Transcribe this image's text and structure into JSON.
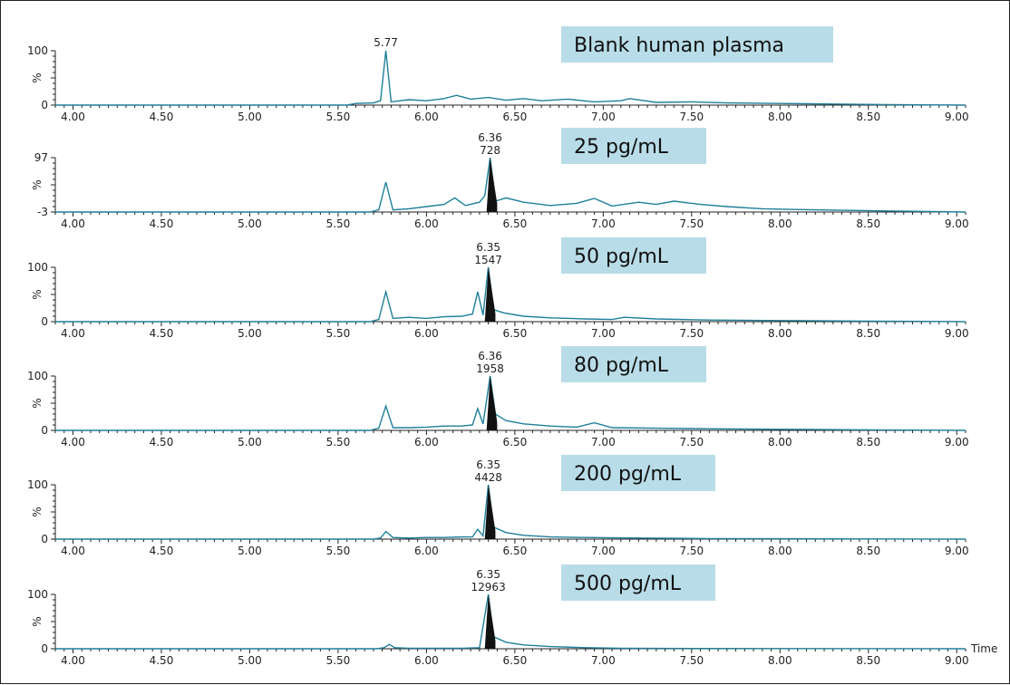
{
  "colors": {
    "trace": "#1f7f9a",
    "peak_fill": "#111111",
    "label_box": "#b9dde8",
    "axis": "#222222"
  },
  "chart_data": {
    "type": "line",
    "x_axis_label": "Time",
    "xlim": [
      3.9,
      9.05
    ],
    "x_ticks": [
      "4.00",
      "4.50",
      "5.00",
      "5.50",
      "6.00",
      "6.50",
      "7.00",
      "7.50",
      "8.00",
      "8.50",
      "9.00"
    ],
    "y_unit_label": "%",
    "panels": [
      {
        "sample_label": "Blank human plasma",
        "y_top_label": "100",
        "y_bottom_label": "0",
        "peak": {
          "rt": "5.77",
          "area": ""
        },
        "points": [
          [
            3.9,
            0
          ],
          [
            5.55,
            0
          ],
          [
            5.6,
            3
          ],
          [
            5.7,
            4
          ],
          [
            5.74,
            8
          ],
          [
            5.77,
            100
          ],
          [
            5.8,
            6
          ],
          [
            5.9,
            10
          ],
          [
            6.0,
            8
          ],
          [
            6.1,
            12
          ],
          [
            6.17,
            18
          ],
          [
            6.25,
            11
          ],
          [
            6.35,
            14
          ],
          [
            6.45,
            9
          ],
          [
            6.55,
            12
          ],
          [
            6.65,
            8
          ],
          [
            6.8,
            11
          ],
          [
            6.95,
            6
          ],
          [
            7.1,
            8
          ],
          [
            7.15,
            12
          ],
          [
            7.3,
            5
          ],
          [
            7.5,
            6
          ],
          [
            7.7,
            4
          ],
          [
            8.0,
            3
          ],
          [
            8.3,
            2
          ],
          [
            8.6,
            1
          ],
          [
            9.05,
            0
          ]
        ]
      },
      {
        "sample_label": "25 pg/mL",
        "y_top_label": "97",
        "y_bottom_label": "-3",
        "peak": {
          "rt": "6.36",
          "area": "728"
        },
        "points": [
          [
            3.9,
            0
          ],
          [
            5.68,
            0
          ],
          [
            5.73,
            4
          ],
          [
            5.77,
            55
          ],
          [
            5.81,
            4
          ],
          [
            5.9,
            6
          ],
          [
            6.0,
            10
          ],
          [
            6.1,
            14
          ],
          [
            6.16,
            26
          ],
          [
            6.22,
            12
          ],
          [
            6.3,
            18
          ],
          [
            6.33,
            30
          ],
          [
            6.36,
            100
          ],
          [
            6.39,
            20
          ],
          [
            6.45,
            26
          ],
          [
            6.55,
            18
          ],
          [
            6.7,
            12
          ],
          [
            6.85,
            16
          ],
          [
            6.95,
            25
          ],
          [
            7.05,
            11
          ],
          [
            7.2,
            18
          ],
          [
            7.3,
            14
          ],
          [
            7.4,
            20
          ],
          [
            7.55,
            14
          ],
          [
            7.7,
            10
          ],
          [
            7.9,
            6
          ],
          [
            8.2,
            4
          ],
          [
            8.6,
            2
          ],
          [
            9.05,
            0
          ]
        ]
      },
      {
        "sample_label": "50 pg/mL",
        "y_top_label": "100",
        "y_bottom_label": "0",
        "peak": {
          "rt": "6.35",
          "area": "1547"
        },
        "points": [
          [
            3.9,
            0
          ],
          [
            5.68,
            0
          ],
          [
            5.73,
            4
          ],
          [
            5.77,
            55
          ],
          [
            5.81,
            6
          ],
          [
            5.9,
            8
          ],
          [
            6.0,
            6
          ],
          [
            6.1,
            9
          ],
          [
            6.2,
            10
          ],
          [
            6.26,
            14
          ],
          [
            6.29,
            55
          ],
          [
            6.32,
            12
          ],
          [
            6.35,
            100
          ],
          [
            6.38,
            22
          ],
          [
            6.44,
            16
          ],
          [
            6.55,
            10
          ],
          [
            6.7,
            7
          ],
          [
            6.9,
            5
          ],
          [
            7.05,
            4
          ],
          [
            7.12,
            8
          ],
          [
            7.3,
            5
          ],
          [
            7.6,
            3
          ],
          [
            8.0,
            2
          ],
          [
            8.5,
            1
          ],
          [
            9.05,
            0
          ]
        ]
      },
      {
        "sample_label": "80 pg/mL",
        "y_top_label": "100",
        "y_bottom_label": "0",
        "peak": {
          "rt": "6.36",
          "area": "1958"
        },
        "points": [
          [
            3.9,
            0
          ],
          [
            5.68,
            0
          ],
          [
            5.73,
            4
          ],
          [
            5.77,
            45
          ],
          [
            5.81,
            5
          ],
          [
            5.9,
            5
          ],
          [
            6.0,
            6
          ],
          [
            6.1,
            8
          ],
          [
            6.2,
            8
          ],
          [
            6.26,
            10
          ],
          [
            6.29,
            40
          ],
          [
            6.32,
            12
          ],
          [
            6.36,
            100
          ],
          [
            6.39,
            30
          ],
          [
            6.45,
            18
          ],
          [
            6.55,
            12
          ],
          [
            6.7,
            8
          ],
          [
            6.85,
            6
          ],
          [
            6.95,
            14
          ],
          [
            7.05,
            5
          ],
          [
            7.3,
            4
          ],
          [
            7.6,
            3
          ],
          [
            8.0,
            2
          ],
          [
            8.5,
            1
          ],
          [
            9.05,
            0
          ]
        ]
      },
      {
        "sample_label": "200 pg/mL",
        "y_top_label": "100",
        "y_bottom_label": "0",
        "peak": {
          "rt": "6.35",
          "area": "4428"
        },
        "points": [
          [
            3.9,
            0
          ],
          [
            5.7,
            0
          ],
          [
            5.74,
            2
          ],
          [
            5.77,
            14
          ],
          [
            5.81,
            3
          ],
          [
            5.9,
            2
          ],
          [
            6.0,
            3
          ],
          [
            6.1,
            3
          ],
          [
            6.2,
            4
          ],
          [
            6.26,
            4
          ],
          [
            6.29,
            18
          ],
          [
            6.32,
            6
          ],
          [
            6.35,
            100
          ],
          [
            6.38,
            22
          ],
          [
            6.45,
            12
          ],
          [
            6.55,
            7
          ],
          [
            6.7,
            4
          ],
          [
            6.9,
            3
          ],
          [
            7.2,
            2
          ],
          [
            7.6,
            1
          ],
          [
            9.05,
            0
          ]
        ]
      },
      {
        "sample_label": "500 pg/mL",
        "y_top_label": "100",
        "y_bottom_label": "0",
        "peak": {
          "rt": "6.35",
          "area": "12963"
        },
        "points": [
          [
            3.9,
            0
          ],
          [
            5.72,
            0
          ],
          [
            5.76,
            2
          ],
          [
            5.79,
            8
          ],
          [
            5.82,
            2
          ],
          [
            5.9,
            1
          ],
          [
            6.2,
            1
          ],
          [
            6.3,
            2
          ],
          [
            6.35,
            100
          ],
          [
            6.38,
            22
          ],
          [
            6.45,
            12
          ],
          [
            6.55,
            7
          ],
          [
            6.7,
            4
          ],
          [
            6.9,
            2
          ],
          [
            7.1,
            1
          ],
          [
            7.5,
            0.5
          ],
          [
            9.05,
            0
          ]
        ]
      }
    ]
  }
}
